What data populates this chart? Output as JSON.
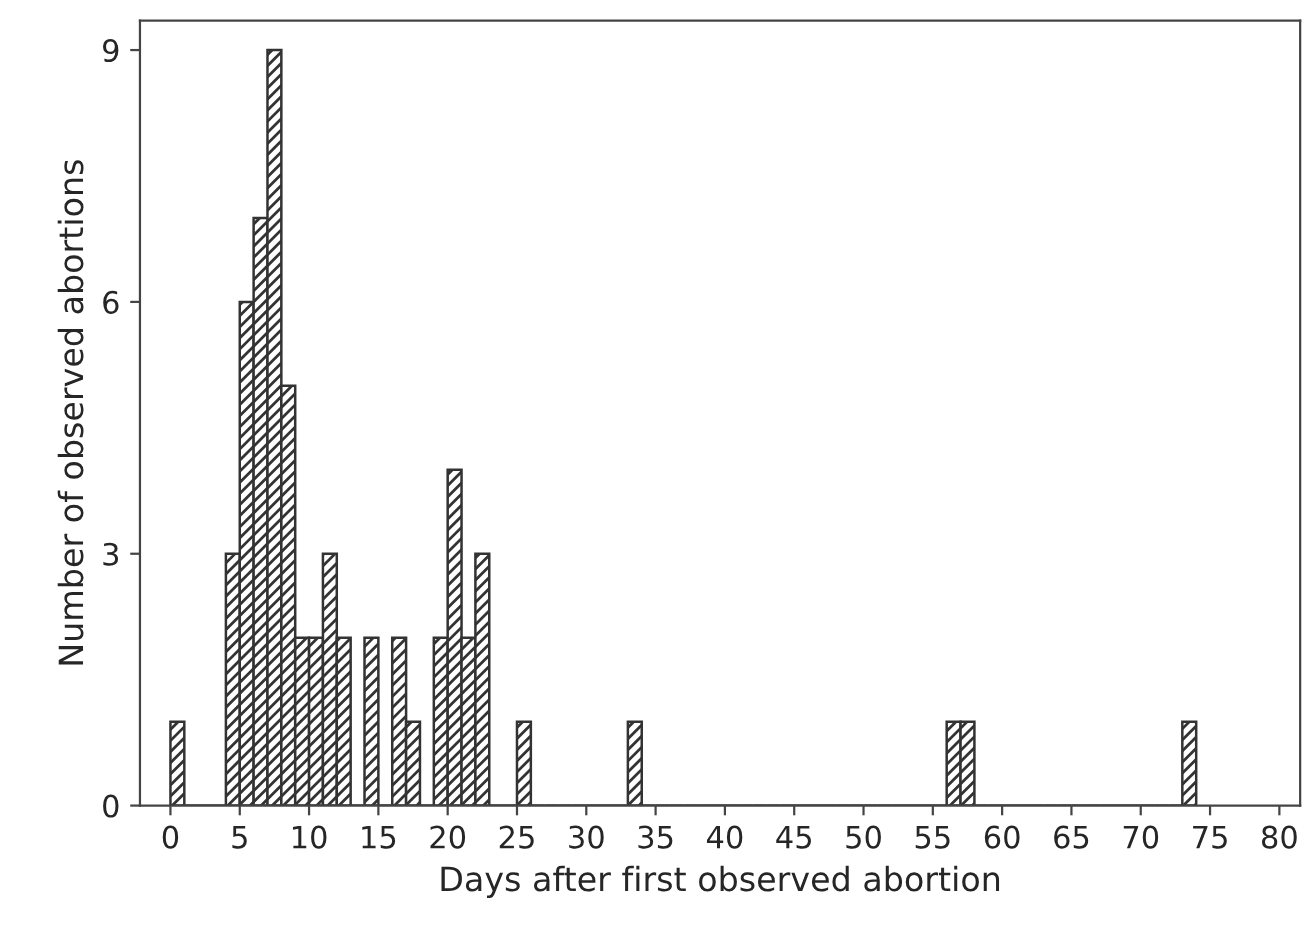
{
  "chart_data": {
    "type": "histogram",
    "xlabel": "Days after first observed abortion",
    "ylabel": "Number of observed abortions",
    "bins": [
      0,
      1,
      2,
      3,
      4,
      5,
      6,
      7,
      8,
      9,
      10,
      11,
      12,
      13,
      14,
      15,
      16,
      17,
      18,
      19,
      20,
      21,
      22,
      23,
      24,
      25,
      26,
      27,
      28,
      29,
      30,
      31,
      32,
      33,
      34,
      35,
      36,
      37,
      38,
      39,
      40,
      41,
      42,
      43,
      44,
      45,
      46,
      47,
      48,
      49,
      50,
      51,
      52,
      53,
      54,
      55,
      56,
      57,
      58,
      59,
      60,
      61,
      62,
      63,
      64,
      65,
      66,
      67,
      68,
      69,
      70,
      71,
      72,
      73,
      74
    ],
    "values": [
      1,
      0,
      0,
      0,
      3,
      6,
      7,
      9,
      5,
      2,
      2,
      3,
      2,
      0,
      2,
      0,
      2,
      1,
      0,
      2,
      4,
      2,
      3,
      0,
      0,
      1,
      0,
      0,
      0,
      0,
      0,
      0,
      0,
      1,
      0,
      0,
      0,
      0,
      0,
      0,
      0,
      0,
      0,
      0,
      0,
      0,
      0,
      0,
      0,
      0,
      0,
      0,
      0,
      0,
      0,
      0,
      1,
      1,
      0,
      0,
      0,
      0,
      0,
      0,
      0,
      0,
      0,
      0,
      0,
      0,
      0,
      0,
      0,
      1
    ],
    "color": "#333333",
    "xlim": [
      -2.2,
      81.5
    ],
    "xticks": [
      0,
      5,
      10,
      15,
      20,
      25,
      30,
      35,
      40,
      45,
      50,
      55,
      60,
      65,
      70,
      75,
      80
    ],
    "ylim": [
      0,
      9.35
    ],
    "yticks": [
      0,
      3,
      6,
      9
    ],
    "grid": false
  }
}
